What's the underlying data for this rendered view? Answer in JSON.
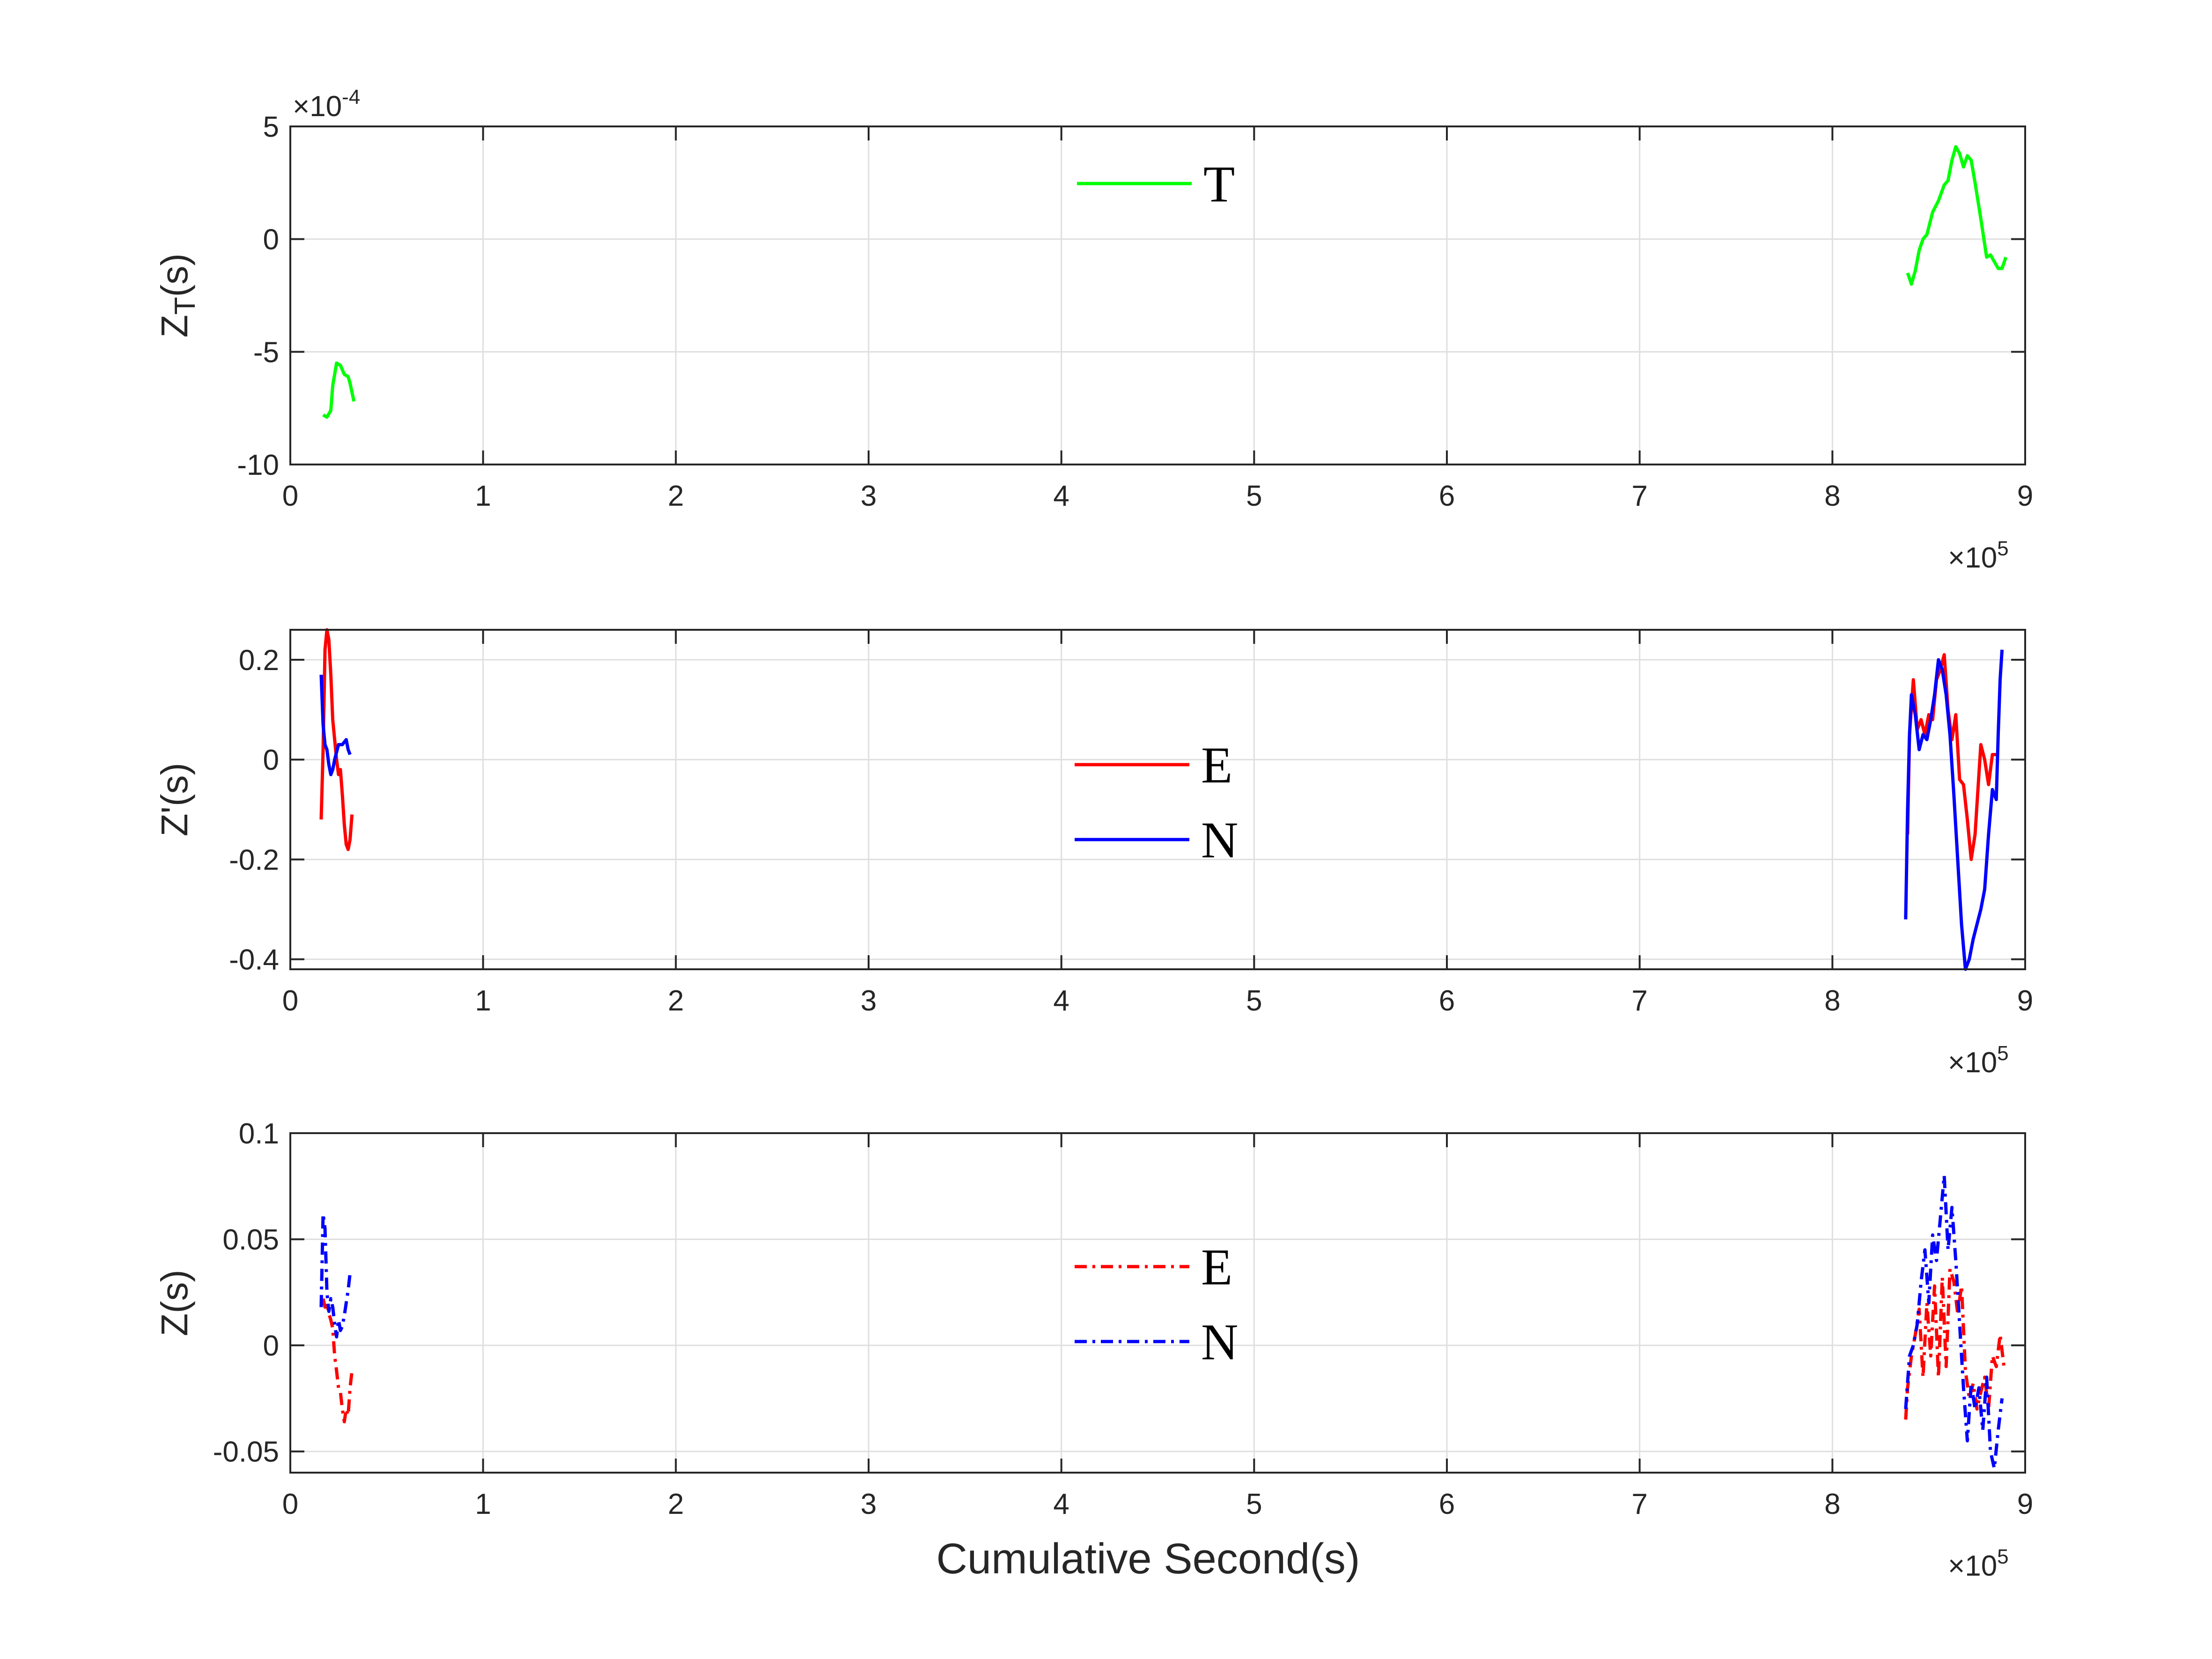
{
  "figure": {
    "xlabel": "Cumulative Second(s)",
    "x_exponent": {
      "base": "×10",
      "power": "5"
    }
  },
  "chart_data": [
    {
      "type": "line",
      "ylabel_main": "Z",
      "ylabel_sub": "T",
      "ylabel_rest": "(s)",
      "y_exponent": {
        "base": "×10",
        "power": "-4"
      },
      "xlim": [
        0,
        9
      ],
      "ylim": [
        -10,
        5
      ],
      "xticks": [
        "0",
        "1",
        "2",
        "3",
        "4",
        "5",
        "6",
        "7",
        "8",
        "9"
      ],
      "yticks": [
        {
          "value": 5,
          "label": "5"
        },
        {
          "value": 0,
          "label": "0"
        },
        {
          "value": -5,
          "label": "-5"
        },
        {
          "value": -10,
          "label": "-10"
        }
      ],
      "grid": true,
      "legend": {
        "position": "top-center"
      },
      "series": [
        {
          "name": "T",
          "color": "#00ff00",
          "dash": "solid",
          "segments": [
            [
              [
                0.17,
                -7.8
              ],
              [
                0.19,
                -7.9
              ],
              [
                0.21,
                -7.6
              ],
              [
                0.22,
                -6.5
              ],
              [
                0.24,
                -5.5
              ],
              [
                0.26,
                -5.6
              ],
              [
                0.28,
                -6.0
              ],
              [
                0.3,
                -6.1
              ],
              [
                0.31,
                -6.4
              ],
              [
                0.33,
                -7.2
              ]
            ],
            [
              [
                8.39,
                -1.5
              ],
              [
                8.41,
                -2.0
              ],
              [
                8.43,
                -1.4
              ],
              [
                8.45,
                -0.5
              ],
              [
                8.47,
                0.0
              ],
              [
                8.49,
                0.2
              ],
              [
                8.52,
                1.2
              ],
              [
                8.55,
                1.7
              ],
              [
                8.58,
                2.4
              ],
              [
                8.6,
                2.6
              ],
              [
                8.62,
                3.5
              ],
              [
                8.64,
                4.1
              ],
              [
                8.66,
                3.8
              ],
              [
                8.68,
                3.2
              ],
              [
                8.7,
                3.7
              ],
              [
                8.72,
                3.5
              ],
              [
                8.74,
                2.5
              ],
              [
                8.77,
                0.9
              ],
              [
                8.8,
                -0.8
              ],
              [
                8.82,
                -0.7
              ],
              [
                8.84,
                -1.0
              ],
              [
                8.86,
                -1.3
              ],
              [
                8.88,
                -1.3
              ],
              [
                8.9,
                -0.8
              ]
            ]
          ]
        }
      ]
    },
    {
      "type": "line",
      "ylabel_main": "Z'(s)",
      "ylabel_sub": "",
      "ylabel_rest": "",
      "y_exponent": null,
      "xlim": [
        0,
        9
      ],
      "ylim": [
        -0.42,
        0.26
      ],
      "xticks": [
        "0",
        "1",
        "2",
        "3",
        "4",
        "5",
        "6",
        "7",
        "8",
        "9"
      ],
      "yticks": [
        {
          "value": 0.2,
          "label": "0.2"
        },
        {
          "value": 0,
          "label": "0"
        },
        {
          "value": -0.2,
          "label": "-0.2"
        },
        {
          "value": -0.4,
          "label": "-0.4"
        }
      ],
      "grid": true,
      "legend": {
        "position": "center"
      },
      "series": [
        {
          "name": "E",
          "color": "#ff0000",
          "dash": "solid",
          "segments": [
            [
              [
                0.16,
                -0.12
              ],
              [
                0.17,
                0.02
              ],
              [
                0.18,
                0.22
              ],
              [
                0.19,
                0.26
              ],
              [
                0.2,
                0.24
              ],
              [
                0.21,
                0.17
              ],
              [
                0.22,
                0.08
              ],
              [
                0.24,
                0.0
              ],
              [
                0.25,
                -0.03
              ],
              [
                0.26,
                -0.02
              ],
              [
                0.27,
                -0.07
              ],
              [
                0.28,
                -0.13
              ],
              [
                0.29,
                -0.17
              ],
              [
                0.3,
                -0.18
              ],
              [
                0.31,
                -0.16
              ],
              [
                0.32,
                -0.11
              ]
            ],
            [
              [
                8.39,
                -0.15
              ],
              [
                8.4,
                0.05
              ],
              [
                8.42,
                0.16
              ],
              [
                8.44,
                0.06
              ],
              [
                8.46,
                0.08
              ],
              [
                8.48,
                0.05
              ],
              [
                8.5,
                0.09
              ],
              [
                8.52,
                0.08
              ],
              [
                8.54,
                0.16
              ],
              [
                8.56,
                0.18
              ],
              [
                8.58,
                0.21
              ],
              [
                8.6,
                0.1
              ],
              [
                8.62,
                0.04
              ],
              [
                8.64,
                0.09
              ],
              [
                8.66,
                -0.04
              ],
              [
                8.68,
                -0.05
              ],
              [
                8.7,
                -0.12
              ],
              [
                8.72,
                -0.2
              ],
              [
                8.74,
                -0.15
              ],
              [
                8.76,
                -0.03
              ],
              [
                8.77,
                0.03
              ],
              [
                8.79,
                0.0
              ],
              [
                8.81,
                -0.05
              ],
              [
                8.83,
                0.01
              ],
              [
                8.85,
                0.01
              ]
            ]
          ]
        },
        {
          "name": "N",
          "color": "#0000ff",
          "dash": "solid",
          "segments": [
            [
              [
                0.16,
                0.17
              ],
              [
                0.17,
                0.07
              ],
              [
                0.18,
                0.03
              ],
              [
                0.19,
                0.02
              ],
              [
                0.2,
                -0.01
              ],
              [
                0.21,
                -0.03
              ],
              [
                0.22,
                -0.02
              ],
              [
                0.23,
                0.0
              ],
              [
                0.25,
                0.03
              ],
              [
                0.27,
                0.03
              ],
              [
                0.29,
                0.04
              ],
              [
                0.3,
                0.02
              ],
              [
                0.31,
                0.01
              ]
            ],
            [
              [
                8.38,
                -0.32
              ],
              [
                8.39,
                -0.1
              ],
              [
                8.4,
                0.05
              ],
              [
                8.41,
                0.13
              ],
              [
                8.43,
                0.09
              ],
              [
                8.45,
                0.02
              ],
              [
                8.47,
                0.05
              ],
              [
                8.49,
                0.04
              ],
              [
                8.51,
                0.08
              ],
              [
                8.53,
                0.13
              ],
              [
                8.55,
                0.2
              ],
              [
                8.57,
                0.18
              ],
              [
                8.59,
                0.13
              ],
              [
                8.61,
                0.05
              ],
              [
                8.63,
                -0.07
              ],
              [
                8.65,
                -0.2
              ],
              [
                8.67,
                -0.33
              ],
              [
                8.69,
                -0.42
              ],
              [
                8.71,
                -0.4
              ],
              [
                8.73,
                -0.36
              ],
              [
                8.75,
                -0.33
              ],
              [
                8.77,
                -0.3
              ],
              [
                8.79,
                -0.26
              ],
              [
                8.81,
                -0.15
              ],
              [
                8.83,
                -0.06
              ],
              [
                8.85,
                -0.08
              ],
              [
                8.86,
                0.05
              ],
              [
                8.87,
                0.16
              ],
              [
                8.88,
                0.22
              ]
            ]
          ]
        }
      ]
    },
    {
      "type": "line",
      "ylabel_main": "Z(s)",
      "ylabel_sub": "",
      "ylabel_rest": "",
      "y_exponent": null,
      "xlim": [
        0,
        9
      ],
      "ylim": [
        -0.06,
        0.1
      ],
      "xticks": [
        "0",
        "1",
        "2",
        "3",
        "4",
        "5",
        "6",
        "7",
        "8",
        "9"
      ],
      "yticks": [
        {
          "value": 0.1,
          "label": "0.1"
        },
        {
          "value": 0.05,
          "label": "0.05"
        },
        {
          "value": 0,
          "label": "0"
        },
        {
          "value": -0.05,
          "label": "-0.05"
        }
      ],
      "grid": true,
      "legend": {
        "position": "center"
      },
      "series": [
        {
          "name": "E",
          "color": "#ff0000",
          "dash": "dashdot",
          "segments": [
            [
              [
                0.17,
                0.022
              ],
              [
                0.18,
                0.018
              ],
              [
                0.19,
                0.02
              ],
              [
                0.2,
                0.015
              ],
              [
                0.21,
                0.012
              ],
              [
                0.22,
                0.008
              ],
              [
                0.23,
                -0.005
              ],
              [
                0.24,
                -0.012
              ],
              [
                0.25,
                -0.02
              ],
              [
                0.26,
                -0.022
              ],
              [
                0.27,
                -0.03
              ],
              [
                0.28,
                -0.036
              ],
              [
                0.29,
                -0.03
              ],
              [
                0.3,
                -0.033
              ],
              [
                0.31,
                -0.02
              ],
              [
                0.32,
                -0.012
              ]
            ],
            [
              [
                8.38,
                -0.035
              ],
              [
                8.39,
                -0.02
              ],
              [
                8.41,
                -0.005
              ],
              [
                8.43,
                0.005
              ],
              [
                8.45,
                0.017
              ],
              [
                8.47,
                -0.015
              ],
              [
                8.49,
                0.02
              ],
              [
                8.51,
                -0.005
              ],
              [
                8.53,
                0.028
              ],
              [
                8.55,
                -0.015
              ],
              [
                8.57,
                0.032
              ],
              [
                8.59,
                -0.01
              ],
              [
                8.61,
                0.036
              ],
              [
                8.63,
                0.03
              ],
              [
                8.65,
                0.015
              ],
              [
                8.67,
                0.028
              ],
              [
                8.69,
                -0.012
              ],
              [
                8.71,
                -0.025
              ],
              [
                8.73,
                -0.018
              ],
              [
                8.75,
                -0.03
              ],
              [
                8.77,
                -0.022
              ],
              [
                8.79,
                -0.015
              ],
              [
                8.81,
                -0.03
              ],
              [
                8.83,
                -0.005
              ],
              [
                8.85,
                -0.01
              ],
              [
                8.87,
                0.005
              ],
              [
                8.89,
                -0.01
              ]
            ]
          ]
        },
        {
          "name": "N",
          "color": "#0000ff",
          "dash": "dashdot",
          "segments": [
            [
              [
                0.16,
                0.018
              ],
              [
                0.17,
                0.062
              ],
              [
                0.18,
                0.055
              ],
              [
                0.19,
                0.025
              ],
              [
                0.2,
                0.016
              ],
              [
                0.21,
                0.022
              ],
              [
                0.22,
                0.018
              ],
              [
                0.23,
                0.01
              ],
              [
                0.24,
                0.004
              ],
              [
                0.25,
                0.012
              ],
              [
                0.26,
                0.007
              ],
              [
                0.27,
                0.009
              ],
              [
                0.28,
                0.014
              ],
              [
                0.29,
                0.02
              ],
              [
                0.3,
                0.026
              ],
              [
                0.31,
                0.034
              ]
            ],
            [
              [
                8.38,
                -0.03
              ],
              [
                8.4,
                -0.005
              ],
              [
                8.42,
                0.0
              ],
              [
                8.44,
                0.01
              ],
              [
                8.46,
                0.03
              ],
              [
                8.48,
                0.045
              ],
              [
                8.5,
                0.02
              ],
              [
                8.52,
                0.052
              ],
              [
                8.54,
                0.04
              ],
              [
                8.56,
                0.06
              ],
              [
                8.58,
                0.08
              ],
              [
                8.6,
                0.045
              ],
              [
                8.62,
                0.065
              ],
              [
                8.64,
                0.04
              ],
              [
                8.66,
                0.01
              ],
              [
                8.68,
                -0.02
              ],
              [
                8.7,
                -0.045
              ],
              [
                8.72,
                -0.018
              ],
              [
                8.74,
                -0.03
              ],
              [
                8.76,
                -0.02
              ],
              [
                8.78,
                -0.04
              ],
              [
                8.8,
                -0.015
              ],
              [
                8.82,
                -0.05
              ],
              [
                8.84,
                -0.058
              ],
              [
                8.86,
                -0.04
              ],
              [
                8.88,
                -0.025
              ]
            ]
          ]
        }
      ]
    }
  ]
}
